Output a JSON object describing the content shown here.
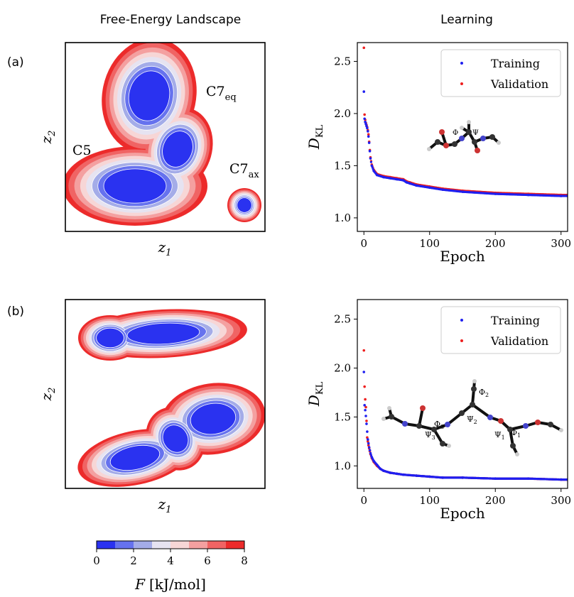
{
  "column_titles": {
    "left": "Free-Energy Landscape",
    "right": "Learning"
  },
  "panels": [
    {
      "label": "(a)",
      "landscape": {
        "xlabel": "z",
        "xlabel_sub": "1",
        "ylabel": "z",
        "ylabel_sub": "2",
        "annotations": [
          {
            "text": "C5",
            "sub": ""
          },
          {
            "text": "C7",
            "sub": "eq"
          },
          {
            "text": "C7",
            "sub": "ax"
          }
        ]
      },
      "molecule_labels": [
        {
          "text": "Φ",
          "sub": ""
        },
        {
          "text": "Ψ",
          "sub": ""
        }
      ]
    },
    {
      "label": "(b)",
      "landscape": {
        "xlabel": "z",
        "xlabel_sub": "1",
        "ylabel": "z",
        "ylabel_sub": "2",
        "annotations": []
      },
      "molecule_labels": [
        {
          "text": "Φ",
          "sub": "3"
        },
        {
          "text": "Ψ",
          "sub": "3"
        },
        {
          "text": "Φ",
          "sub": "2"
        },
        {
          "text": "Ψ",
          "sub": "2"
        },
        {
          "text": "Φ",
          "sub": "1"
        },
        {
          "text": "Ψ",
          "sub": "1"
        }
      ]
    }
  ],
  "colorbar": {
    "label": "F [kJ/mol]",
    "label_var": "F",
    "label_unit": "[kJ/mol]",
    "ticks": [
      "0",
      "2",
      "4",
      "6",
      "8"
    ],
    "levels": [
      0,
      1,
      2,
      3,
      4,
      5,
      6,
      7,
      8
    ],
    "colors": [
      "#2a32f0",
      "#6672ee",
      "#a4ace8",
      "#e6e3f1",
      "#f7d6d6",
      "#f4a0a0",
      "#f06464",
      "#ec2b2b"
    ]
  },
  "chart_data": [
    {
      "type": "scatter",
      "panel": "(a)",
      "xlabel": "Epoch",
      "ylabel": "D",
      "ylabel_sub": "KL",
      "xlim": [
        -10,
        310
      ],
      "ylim": [
        0.87,
        2.68
      ],
      "xticks": [
        0,
        100,
        200,
        300
      ],
      "yticks": [
        1.0,
        1.5,
        2.0,
        2.5
      ],
      "grid": false,
      "legend_position": "top-right",
      "series": [
        {
          "name": "Training",
          "color": "#1f1ff0",
          "x": [
            0,
            1,
            2,
            3,
            4,
            5,
            6,
            7,
            8,
            9,
            10,
            12,
            15,
            20,
            30,
            40,
            50,
            60,
            65,
            70,
            80,
            100,
            120,
            150,
            200,
            250,
            300,
            310
          ],
          "y": [
            2.21,
            1.95,
            1.92,
            1.9,
            1.88,
            1.86,
            1.83,
            1.78,
            1.72,
            1.64,
            1.57,
            1.5,
            1.45,
            1.41,
            1.39,
            1.38,
            1.37,
            1.36,
            1.34,
            1.33,
            1.31,
            1.29,
            1.27,
            1.25,
            1.23,
            1.22,
            1.21,
            1.21
          ]
        },
        {
          "name": "Validation",
          "color": "#ee1f1f",
          "x": [
            0,
            1,
            2,
            3,
            4,
            5,
            6,
            7,
            8,
            9,
            10,
            12,
            15,
            20,
            30,
            40,
            50,
            60,
            65,
            70,
            80,
            100,
            120,
            150,
            200,
            250,
            300,
            310
          ],
          "y": [
            2.63,
            1.99,
            1.94,
            1.91,
            1.89,
            1.87,
            1.84,
            1.8,
            1.73,
            1.65,
            1.58,
            1.51,
            1.46,
            1.42,
            1.4,
            1.39,
            1.38,
            1.37,
            1.35,
            1.34,
            1.32,
            1.3,
            1.28,
            1.26,
            1.24,
            1.23,
            1.22,
            1.22
          ]
        }
      ]
    },
    {
      "type": "scatter",
      "panel": "(b)",
      "xlabel": "Epoch",
      "ylabel": "D",
      "ylabel_sub": "KL",
      "xlim": [
        -10,
        310
      ],
      "ylim": [
        0.77,
        2.7
      ],
      "xticks": [
        0,
        100,
        200,
        300
      ],
      "yticks": [
        1.0,
        1.5,
        2.0,
        2.5
      ],
      "grid": false,
      "legend_position": "top-right",
      "series": [
        {
          "name": "Training",
          "color": "#1f1ff0",
          "x": [
            0,
            1,
            2,
            3,
            4,
            5,
            6,
            7,
            8,
            9,
            10,
            12,
            15,
            20,
            25,
            30,
            40,
            50,
            60,
            80,
            100,
            120,
            150,
            200,
            250,
            300,
            310
          ],
          "y": [
            1.96,
            1.62,
            1.57,
            1.51,
            1.43,
            1.35,
            1.27,
            1.23,
            1.19,
            1.16,
            1.13,
            1.09,
            1.05,
            1.01,
            0.97,
            0.95,
            0.93,
            0.92,
            0.91,
            0.9,
            0.89,
            0.88,
            0.88,
            0.87,
            0.87,
            0.86,
            0.86
          ]
        },
        {
          "name": "Validation",
          "color": "#ee1f1f",
          "x": [
            0,
            1,
            2,
            3,
            4,
            5,
            6,
            7,
            8,
            9,
            10,
            12,
            15,
            20,
            25,
            30,
            40,
            50,
            60,
            80,
            100,
            120,
            150,
            200,
            250,
            300,
            310
          ],
          "y": [
            2.18,
            1.81,
            1.68,
            1.6,
            1.46,
            1.29,
            1.25,
            1.21,
            1.18,
            1.15,
            1.12,
            1.08,
            1.04,
            1.0,
            0.97,
            0.95,
            0.93,
            0.92,
            0.91,
            0.9,
            0.89,
            0.88,
            0.88,
            0.87,
            0.87,
            0.86,
            0.86
          ]
        }
      ],
      "legend": [
        "Training",
        "Validation"
      ]
    }
  ]
}
